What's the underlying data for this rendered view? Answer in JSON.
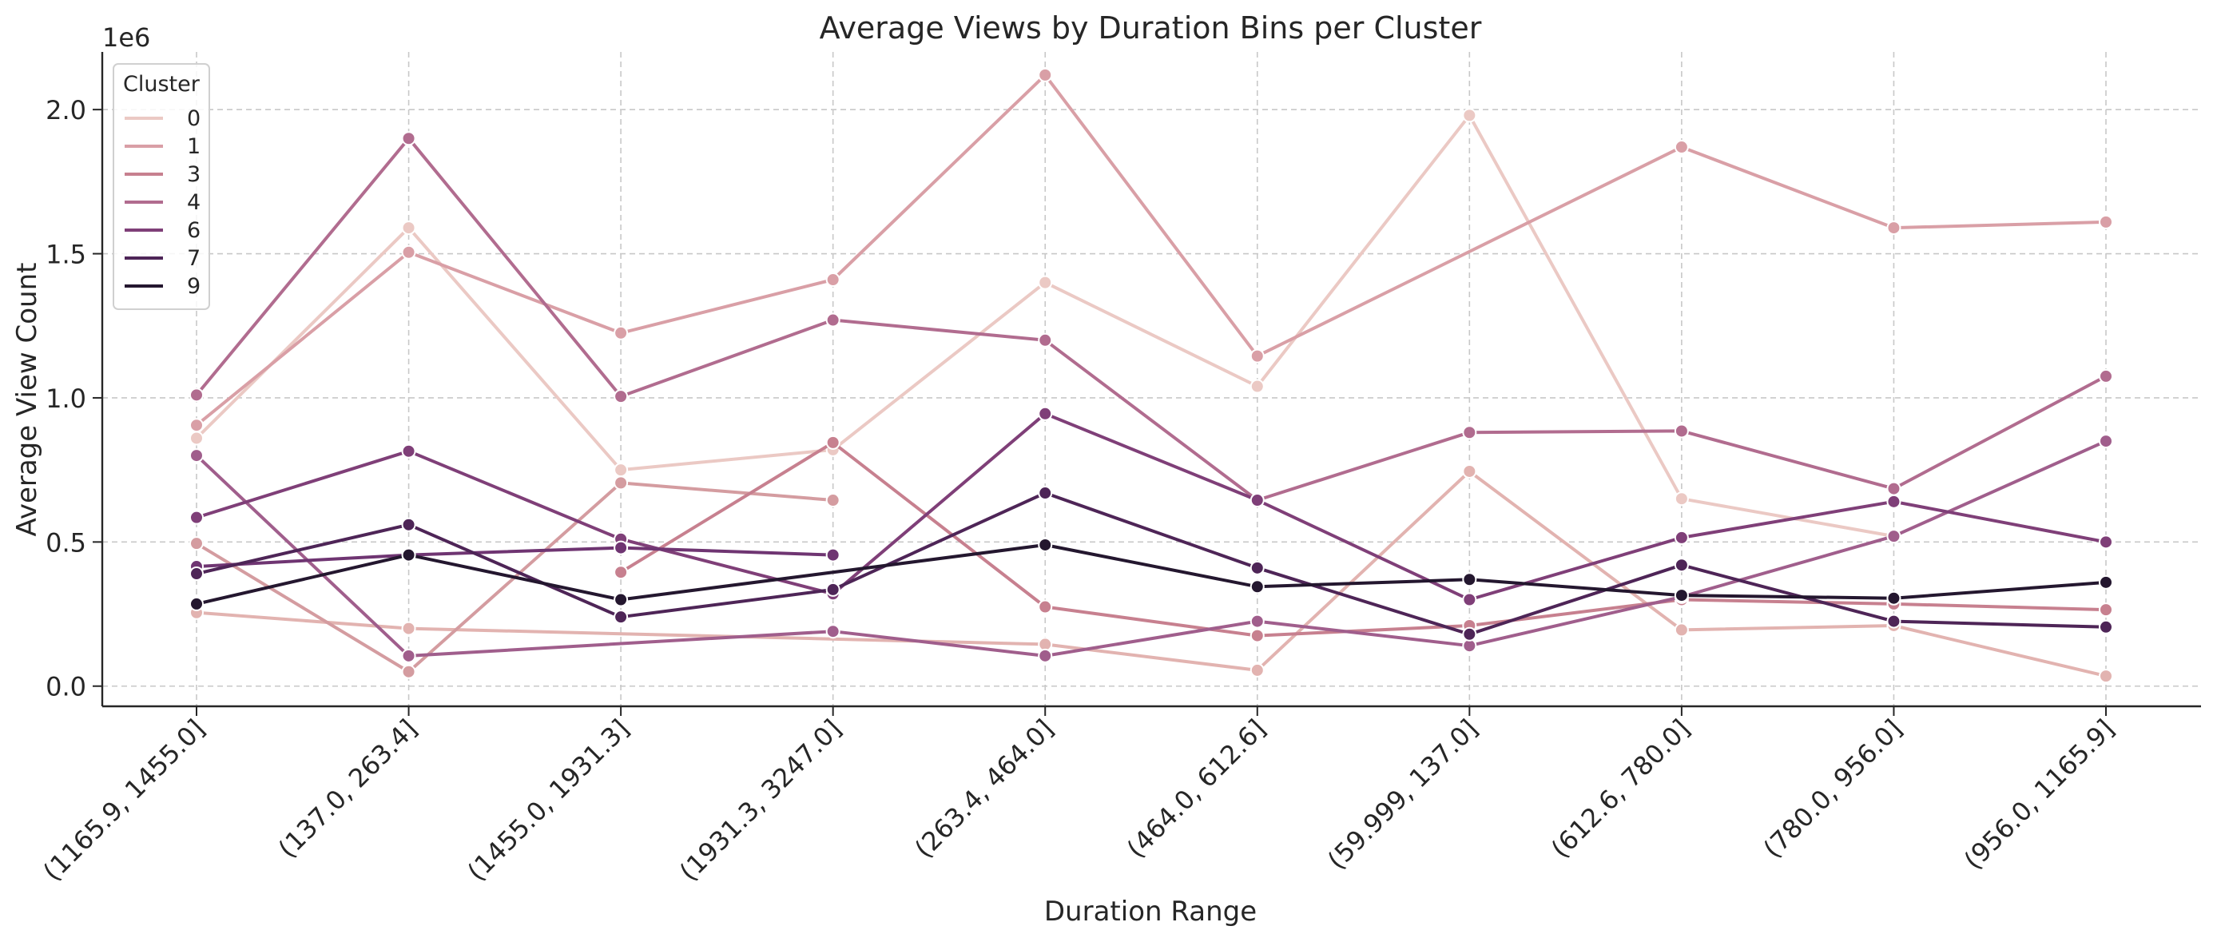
{
  "chart_data": {
    "type": "line",
    "title": "Average Views by Duration Bins per Cluster",
    "xlabel": "Duration Range",
    "ylabel": "Average View Count",
    "y_offset_label": "1e6",
    "ylim": [
      -0.07,
      2.2
    ],
    "yticks": [
      0.0,
      0.5,
      1.0,
      1.5,
      2.0
    ],
    "ytick_labels": [
      "0.0",
      "0.5",
      "1.0",
      "1.5",
      "2.0"
    ],
    "categories": [
      "(1165.9, 1455.0]",
      "(137.0, 263.4]",
      "(1455.0, 1931.3]",
      "(1931.3, 3247.0]",
      "(263.4, 464.0]",
      "(464.0, 612.6]",
      "(59.999, 137.0]",
      "(612.6, 780.0]",
      "(780.0, 956.0]",
      "(956.0, 1165.9]"
    ],
    "grid": true,
    "legend": {
      "title": "Cluster",
      "position": "upper-left"
    },
    "series": [
      {
        "name": "0",
        "color": "#ebc9c4",
        "values": [
          0.86,
          1.59,
          0.75,
          0.82,
          1.4,
          1.04,
          1.98,
          0.65,
          0.52,
          null
        ]
      },
      {
        "name": "0",
        "color": "#e2b3b0",
        "values": [
          0.255,
          0.2,
          null,
          null,
          0.145,
          0.055,
          0.745,
          0.195,
          0.21,
          0.035
        ],
        "legend": false
      },
      {
        "name": "1",
        "color": "#d99fa6",
        "values": [
          0.905,
          1.505,
          1.225,
          1.41,
          2.12,
          1.145,
          null,
          1.87,
          1.59,
          1.61
        ]
      },
      {
        "name": "1",
        "color": "#d49ca0",
        "values": [
          0.495,
          0.05,
          0.705,
          0.645,
          null,
          null,
          null,
          null,
          null,
          null
        ],
        "legend": false
      },
      {
        "name": "3",
        "color": "#c7808f",
        "values": [
          null,
          null,
          0.395,
          0.845,
          0.275,
          0.175,
          0.21,
          0.3,
          0.285,
          0.265
        ]
      },
      {
        "name": "4",
        "color": "#b16c8f",
        "values": [
          1.01,
          1.9,
          1.005,
          1.27,
          1.2,
          0.645,
          0.88,
          0.885,
          0.685,
          1.075
        ]
      },
      {
        "name": "4",
        "color": "#a05e8c",
        "values": [
          0.8,
          0.105,
          null,
          0.19,
          0.105,
          0.225,
          0.14,
          0.31,
          0.52,
          0.85
        ],
        "legend": false
      },
      {
        "name": "6",
        "color": "#7f3f78",
        "values": [
          0.585,
          0.815,
          0.51,
          0.32,
          0.945,
          0.645,
          0.3,
          0.515,
          0.64,
          0.5
        ]
      },
      {
        "name": "6",
        "color": "#6f3572",
        "values": [
          0.415,
          0.455,
          0.48,
          0.455,
          null,
          null,
          null,
          null,
          null,
          null
        ],
        "legend": false
      },
      {
        "name": "7",
        "color": "#4e2557",
        "values": [
          0.39,
          0.56,
          0.24,
          0.335,
          0.67,
          0.41,
          0.18,
          0.42,
          0.225,
          0.205
        ]
      },
      {
        "name": "9",
        "color": "#24172f",
        "values": [
          0.285,
          0.455,
          0.3,
          null,
          0.49,
          0.345,
          0.37,
          0.315,
          0.305,
          0.36
        ]
      }
    ]
  }
}
